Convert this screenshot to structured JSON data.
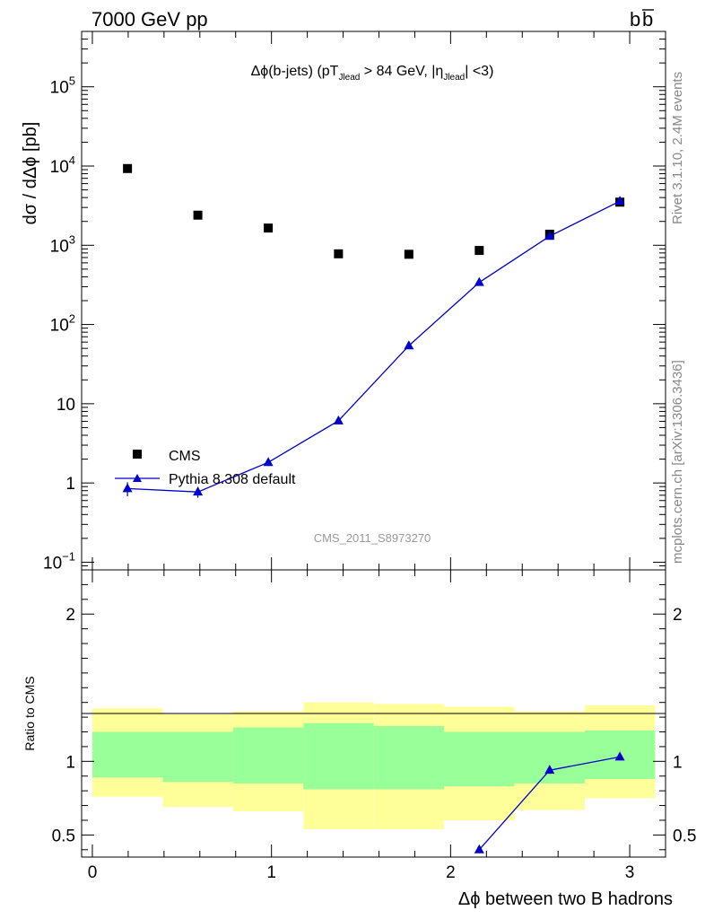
{
  "header": {
    "left": "7000 GeV pp",
    "right": "b",
    "right_bar": "b"
  },
  "side": {
    "rivet": "Rivet 3.1.10,  2.4M events",
    "mcplots": "mcplots.cern.ch [arXiv:1306.3436]"
  },
  "chart_data": [
    {
      "type": "scatter",
      "panel": "main",
      "title": {
        "part1": "Δϕ(b-jets) (pT",
        "sub1": "Jlead",
        "part2": " >  84 GeV, |η",
        "sub2": "Jlead",
        "part3": "| <3)"
      },
      "watermark": "CMS_2011_S8973270",
      "ylabel": "dσ / dΔϕ [pb]",
      "yscale": "log",
      "ylim": [
        0.08,
        500000
      ],
      "xlim": [
        -0.06,
        3.2
      ],
      "y_ticks": [
        {
          "value": 100000,
          "base": "10",
          "exp": "5"
        },
        {
          "value": 10000,
          "base": "10",
          "exp": "4"
        },
        {
          "value": 1000,
          "base": "10",
          "exp": "3"
        },
        {
          "value": 100,
          "base": "10",
          "exp": "2"
        },
        {
          "value": 10,
          "base": "10",
          "exp": ""
        },
        {
          "value": 1,
          "base": "1",
          "exp": ""
        },
        {
          "value": 0.1,
          "base": "10",
          "exp": "−1"
        }
      ],
      "legend_position": "bottom-left",
      "series": [
        {
          "name": "CMS",
          "marker": "square",
          "color": "#000000",
          "x": [
            0.196,
            0.589,
            0.982,
            1.374,
            1.767,
            2.16,
            2.553,
            2.945
          ],
          "y": [
            9300,
            2400,
            1650,
            780,
            770,
            860,
            1380,
            3500
          ]
        },
        {
          "name": "Pythia 8.308 default",
          "marker": "triangle",
          "color": "#0000cc",
          "x": [
            0.196,
            0.589,
            0.982,
            1.374,
            1.767,
            2.16,
            2.553,
            2.945
          ],
          "y": [
            0.85,
            0.77,
            1.82,
            6.1,
            54,
            340,
            1300,
            3600
          ],
          "yerr": [
            0.17,
            0.12,
            0.18,
            0.3,
            2,
            8,
            20,
            40
          ]
        }
      ]
    },
    {
      "type": "line",
      "panel": "ratio",
      "ylabel": "Ratio to CMS",
      "xlabel": "Δϕ between two B hadrons",
      "ylim": [
        0.35,
        2.3
      ],
      "xlim": [
        -0.06,
        3.2
      ],
      "y_ticks": [
        {
          "value": 2,
          "label": "2"
        },
        {
          "value": 1,
          "label": "1"
        },
        {
          "value": 0.5,
          "label": "0.5"
        }
      ],
      "x_ticks": [
        {
          "value": 0,
          "label": "0"
        },
        {
          "value": 1,
          "label": "1"
        },
        {
          "value": 2,
          "label": "2"
        },
        {
          "value": 3,
          "label": "3"
        }
      ],
      "bin_edges": [
        0,
        0.393,
        0.785,
        1.178,
        1.571,
        1.963,
        2.356,
        2.749,
        3.142
      ],
      "band_outer_colour": "#ffff99",
      "band_inner_colour": "#99ff99",
      "band_outer": {
        "low": [
          0.76,
          0.69,
          0.66,
          0.54,
          0.54,
          0.6,
          0.67,
          0.75
        ],
        "high": [
          1.36,
          1.32,
          1.34,
          1.4,
          1.39,
          1.37,
          1.34,
          1.38
        ]
      },
      "band_inner": {
        "low": [
          0.89,
          0.86,
          0.85,
          0.81,
          0.81,
          0.83,
          0.85,
          0.88
        ],
        "high": [
          1.2,
          1.2,
          1.23,
          1.26,
          1.24,
          1.2,
          1.2,
          1.21
        ]
      },
      "series": [
        {
          "name": "Pythia 8.308 default",
          "color": "#0000cc",
          "x": [
            2.16,
            2.553,
            2.945
          ],
          "y": [
            0.4,
            0.94,
            1.03
          ]
        }
      ]
    }
  ]
}
